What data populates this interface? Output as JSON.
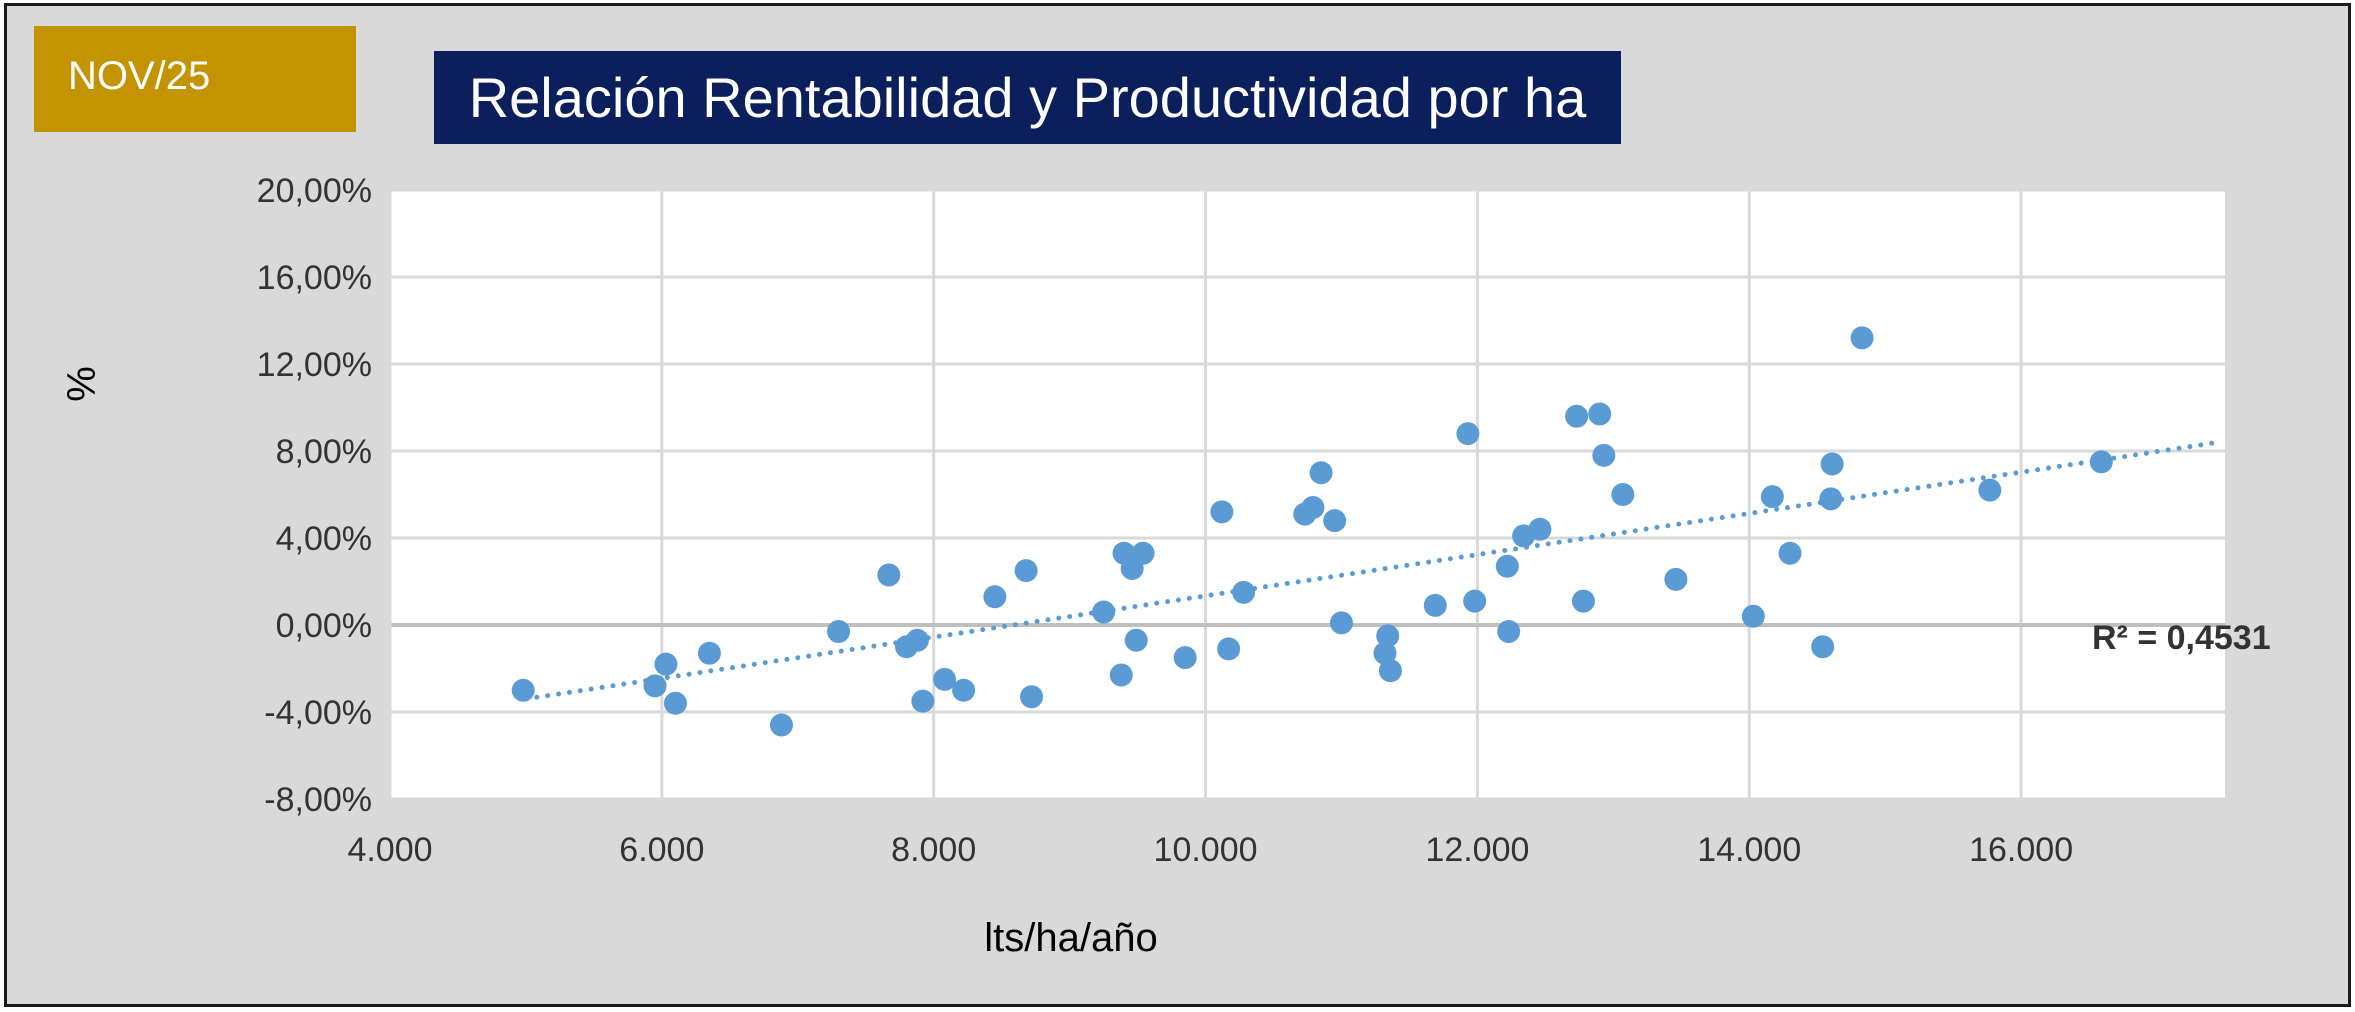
{
  "badge": {
    "label": "NOV/25"
  },
  "chart_data": {
    "type": "scatter",
    "title": "Relación Rentabilidad y Productividad por ha",
    "xlabel": "lts/ha/año",
    "ylabel": "%",
    "xlim": [
      4000,
      17500
    ],
    "ylim": [
      -8,
      20
    ],
    "xticks": [
      4000,
      6000,
      8000,
      10000,
      12000,
      14000,
      16000
    ],
    "xtick_labels": [
      "4.000",
      "6.000",
      "8.000",
      "10.000",
      "12.000",
      "14.000",
      "16.000"
    ],
    "yticks": [
      20,
      16,
      12,
      8,
      4,
      0,
      -4,
      -8
    ],
    "ytick_labels": [
      "20,00%",
      "16,00%",
      "12,00%",
      "8,00%",
      "4,00%",
      "0,00%",
      "-4,00%",
      "-8,00%"
    ],
    "grid": true,
    "marker_color": "#5b9bd5",
    "trendline": {
      "type": "linear",
      "x0": 5000,
      "y0": -3.4,
      "x1": 17450,
      "y1": 8.4,
      "style": "dotted",
      "label": "R² = 0,4531"
    },
    "points": [
      {
        "x": 4980,
        "y": -3.0
      },
      {
        "x": 5950,
        "y": -2.8
      },
      {
        "x": 6030,
        "y": -1.8
      },
      {
        "x": 6100,
        "y": -3.6
      },
      {
        "x": 6350,
        "y": -1.3
      },
      {
        "x": 6880,
        "y": -4.6
      },
      {
        "x": 7300,
        "y": -0.3
      },
      {
        "x": 7670,
        "y": 2.3
      },
      {
        "x": 7800,
        "y": -1.0
      },
      {
        "x": 7880,
        "y": -0.7
      },
      {
        "x": 7920,
        "y": -3.5
      },
      {
        "x": 8080,
        "y": -2.5
      },
      {
        "x": 8220,
        "y": -3.0
      },
      {
        "x": 8450,
        "y": 1.3
      },
      {
        "x": 8680,
        "y": 2.5
      },
      {
        "x": 8720,
        "y": -3.3
      },
      {
        "x": 9250,
        "y": 0.6
      },
      {
        "x": 9380,
        "y": -2.3
      },
      {
        "x": 9400,
        "y": 3.3
      },
      {
        "x": 9460,
        "y": 2.6
      },
      {
        "x": 9490,
        "y": -0.7
      },
      {
        "x": 9540,
        "y": 3.3
      },
      {
        "x": 9850,
        "y": -1.5
      },
      {
        "x": 10120,
        "y": 5.2
      },
      {
        "x": 10170,
        "y": -1.1
      },
      {
        "x": 10280,
        "y": 1.5
      },
      {
        "x": 10730,
        "y": 5.1
      },
      {
        "x": 10790,
        "y": 5.4
      },
      {
        "x": 10850,
        "y": 7.0
      },
      {
        "x": 10950,
        "y": 4.8
      },
      {
        "x": 11000,
        "y": 0.1
      },
      {
        "x": 11320,
        "y": -1.3
      },
      {
        "x": 11340,
        "y": -0.5
      },
      {
        "x": 11360,
        "y": -2.1
      },
      {
        "x": 11690,
        "y": 0.9
      },
      {
        "x": 11930,
        "y": 8.8
      },
      {
        "x": 11980,
        "y": 1.1
      },
      {
        "x": 12220,
        "y": 2.7
      },
      {
        "x": 12230,
        "y": -0.3
      },
      {
        "x": 12340,
        "y": 4.1
      },
      {
        "x": 12460,
        "y": 4.4
      },
      {
        "x": 12730,
        "y": 9.6
      },
      {
        "x": 12780,
        "y": 1.1
      },
      {
        "x": 12900,
        "y": 9.7
      },
      {
        "x": 12930,
        "y": 7.8
      },
      {
        "x": 13070,
        "y": 6.0
      },
      {
        "x": 13460,
        "y": 2.1
      },
      {
        "x": 14030,
        "y": 0.4
      },
      {
        "x": 14170,
        "y": 5.9
      },
      {
        "x": 14300,
        "y": 3.3
      },
      {
        "x": 14540,
        "y": -1.0
      },
      {
        "x": 14600,
        "y": 5.8
      },
      {
        "x": 14610,
        "y": 7.4
      },
      {
        "x": 14830,
        "y": 13.2
      },
      {
        "x": 15770,
        "y": 6.2
      },
      {
        "x": 16590,
        "y": 7.5
      }
    ]
  }
}
